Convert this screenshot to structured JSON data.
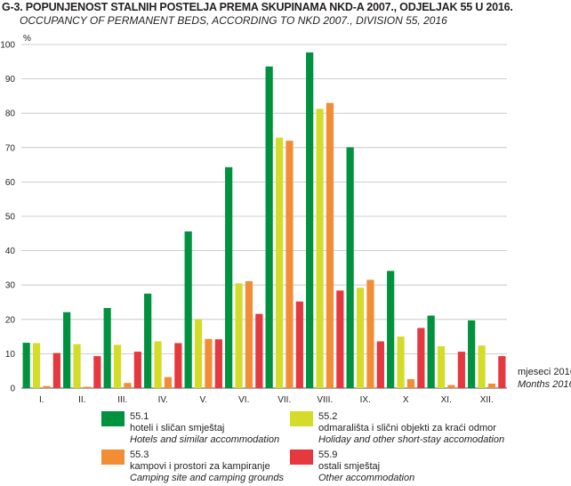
{
  "title": "G-3.  POPUNJENOST STALNIH POSTELJA PREMA SKUPINAMA NKD-A 2007., ODJELJAK 55 U 2016.",
  "subtitle": "OCCUPANCY OF PERMANENT BEDS, ACCORDING TO NKD 2007., DIVISION 55, 2016",
  "chart_data": {
    "type": "bar",
    "ylabel": "%",
    "xlabel": "mjeseci 2016.",
    "xlabel_en": "Months 2016",
    "ylim": [
      0,
      100
    ],
    "yticks": [
      0,
      10,
      20,
      30,
      40,
      50,
      60,
      70,
      80,
      90,
      100
    ],
    "grid": true,
    "legend_position": "bottom",
    "categories": [
      "I.",
      "II.",
      "III.",
      "IV.",
      "V.",
      "VI.",
      "VII.",
      "VIII.",
      "IX.",
      "X",
      "XI.",
      "XII."
    ],
    "series": [
      {
        "name": "55.1",
        "label_hr": "hoteli i sličan smještaj",
        "label_en": "Hotels and similar accommodation",
        "color": "#00923f",
        "values": [
          13.2,
          22.1,
          23.3,
          27.5,
          45.6,
          64.3,
          93.6,
          97.7,
          70.1,
          34.1,
          21.1,
          19.7
        ]
      },
      {
        "name": "55.2",
        "label_hr": "odmarališta i slični objekti za kraći odmor",
        "label_en": "Holiday and other short-stay accomodation",
        "color": "#d4dc2a",
        "values": [
          13.1,
          12.8,
          12.6,
          13.6,
          20.0,
          30.5,
          72.9,
          81.3,
          29.2,
          15.0,
          12.2,
          12.4
        ]
      },
      {
        "name": "55.3",
        "label_hr": "kampovi i prostori za kampiranje",
        "label_en": "Camping site and camping grounds",
        "color": "#f28c35",
        "values": [
          0.6,
          0.4,
          1.5,
          3.2,
          14.3,
          31.1,
          72.0,
          83.0,
          31.5,
          2.6,
          0.9,
          1.3
        ]
      },
      {
        "name": "55.9",
        "label_hr": "ostali smještaj",
        "label_en": "Other accommodation",
        "color": "#e5383f",
        "values": [
          10.2,
          9.3,
          10.6,
          13.1,
          14.2,
          21.6,
          25.2,
          28.4,
          13.6,
          17.5,
          10.6,
          9.3
        ]
      }
    ]
  }
}
